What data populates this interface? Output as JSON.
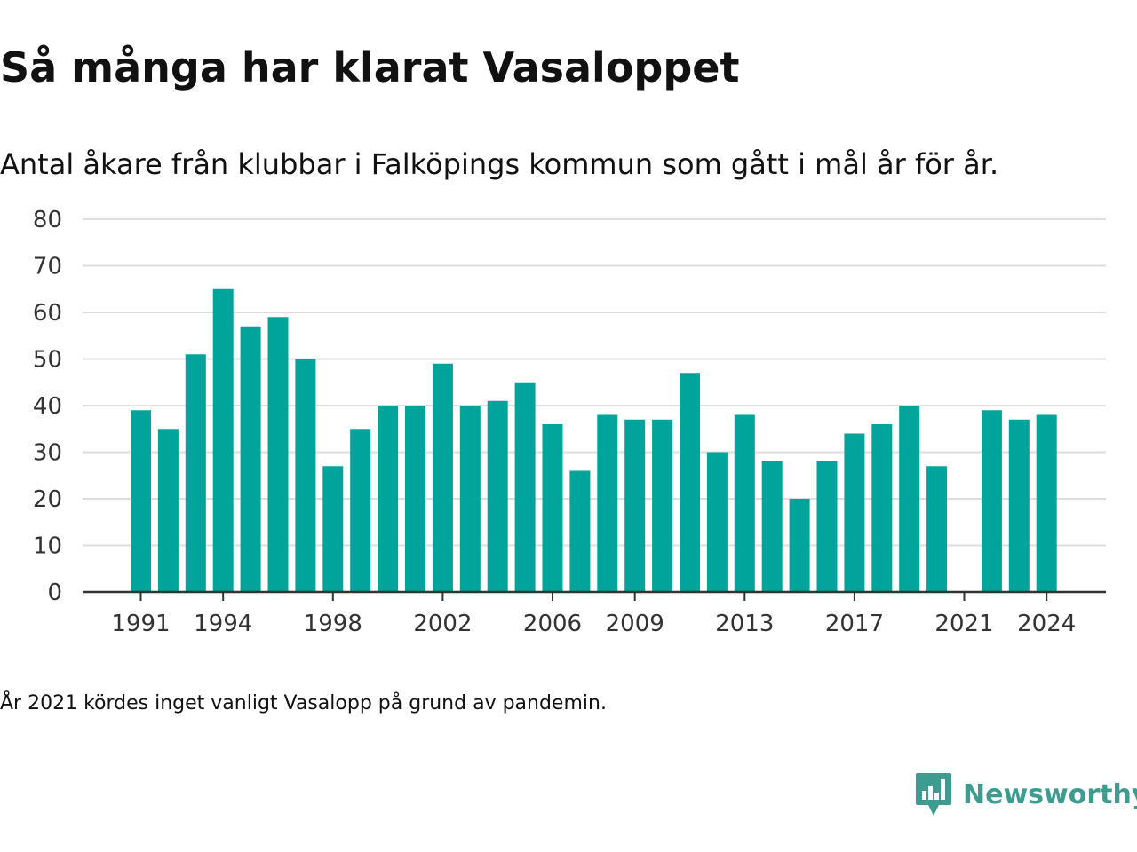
{
  "header": {
    "title": "Så många har klarat Vasaloppet",
    "subtitle": "Antal åkare från klubbar i Falköpings kommun som gått i mål år för år."
  },
  "footer": {
    "note": "År 2021 kördes inget vanligt Vasalopp på grund av pandemin.",
    "brand": "Newsworthy"
  },
  "colors": {
    "bar": "#00a49a",
    "grid": "#dddddd",
    "axis": "#333333",
    "brand": "#3d9b8f"
  },
  "chart_data": {
    "type": "bar",
    "categories": [
      "1991",
      "1992",
      "1993",
      "1994",
      "1995",
      "1996",
      "1997",
      "1998",
      "1999",
      "2000",
      "2001",
      "2002",
      "2003",
      "2004",
      "2005",
      "2006",
      "2007",
      "2008",
      "2009",
      "2010",
      "2011",
      "2012",
      "2013",
      "2014",
      "2015",
      "2016",
      "2017",
      "2018",
      "2019",
      "2020",
      "2021",
      "2022",
      "2023",
      "2024"
    ],
    "values": [
      39,
      35,
      51,
      65,
      57,
      59,
      50,
      27,
      35,
      40,
      40,
      49,
      40,
      41,
      45,
      36,
      26,
      38,
      37,
      37,
      47,
      30,
      38,
      28,
      20,
      28,
      34,
      36,
      40,
      27,
      null,
      39,
      37,
      38
    ],
    "x_tick_labels": [
      "1991",
      "1994",
      "1998",
      "2002",
      "2006",
      "2009",
      "2013",
      "2017",
      "2021",
      "2024"
    ],
    "y_ticks": [
      0,
      10,
      20,
      30,
      40,
      50,
      60,
      70,
      80
    ],
    "ylim": [
      0,
      80
    ],
    "grid": true,
    "legend": "none"
  }
}
